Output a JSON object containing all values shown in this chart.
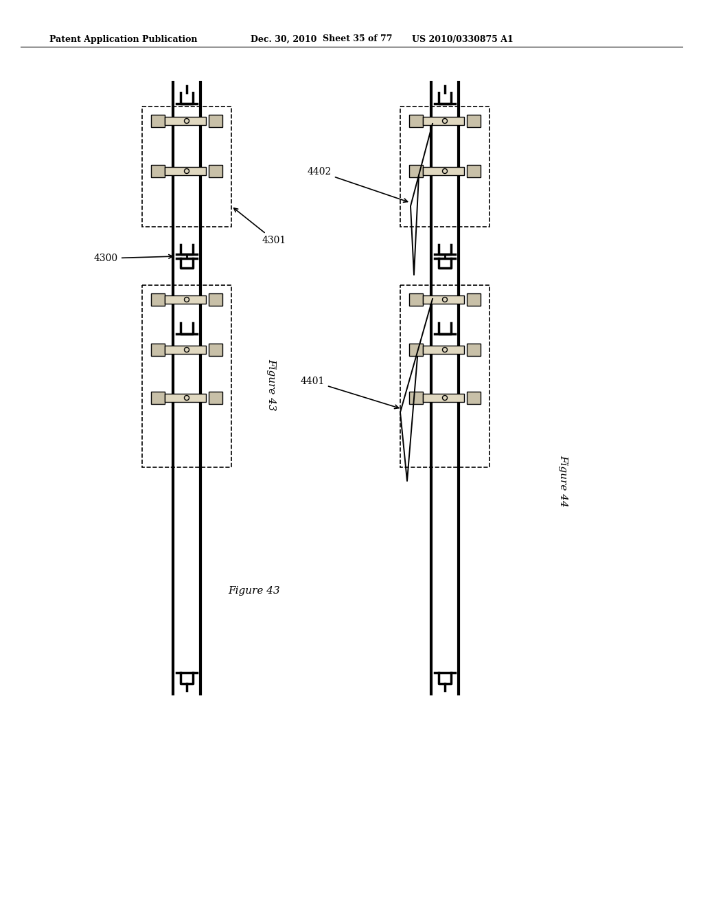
{
  "page_title_left": "Patent Application Publication",
  "page_title_mid": "Dec. 30, 2010",
  "page_title_right_sheet": "Sheet 35 of 77",
  "page_title_right_patent": "US 2010/0330875 A1",
  "fig43_label": "Figure 43",
  "fig44_label": "Figure 44",
  "label_4300": "4300",
  "label_4301": "4301",
  "label_4401": "4401",
  "label_4402": "4402",
  "bg_color": "#ffffff",
  "line_color": "#000000",
  "component_fill": "#c8c0a8",
  "component_fill2": "#e0d8c0"
}
